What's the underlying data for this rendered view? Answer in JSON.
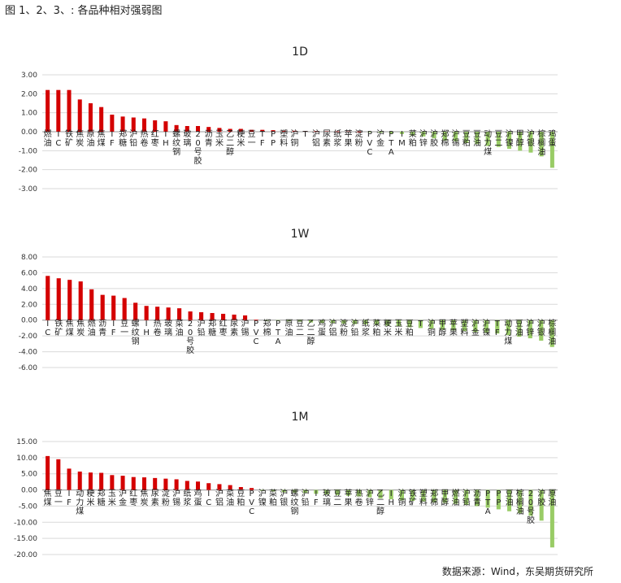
{
  "figure_title": "图 1、2、3、: 各品种相对强弱图",
  "source": "数据来源：Wind，东吴期货研究所",
  "colors": {
    "positive": "#d40000",
    "negative": "#99cc66",
    "grid": "#d9d9d9",
    "axis": "#999999"
  },
  "chart_data": [
    {
      "type": "bar",
      "title": "1D",
      "ylim": [
        -3,
        3
      ],
      "yticks": [
        "3.00",
        "2.00",
        "1.00",
        "0.00",
        "-1.00",
        "-2.00",
        "-3.00"
      ],
      "grid": true,
      "categories": [
        "燃油",
        "IC",
        "铁矿",
        "焦炭",
        "原油",
        "焦煤",
        "IF",
        "郑糖",
        "沪铅",
        "热卷",
        "红枣",
        "IH",
        "螺纹钢",
        "玻璃",
        "20号胶",
        "沥青",
        "玉米",
        "乙二醇",
        "粳米",
        "豆一",
        "TF",
        "PP",
        "塑料",
        "沪铜",
        "T",
        "沪铝",
        "尿素",
        "纸浆",
        "苹果",
        "淀粉",
        "PVC",
        "沪金",
        "PTA",
        "IM",
        "菜粕",
        "沪锌",
        "沪胶",
        "郑棉",
        "沪锡",
        "豆粕",
        "豆油",
        "动力煤",
        "豆二",
        "沪镍",
        "甲醇",
        "沪银",
        "棕榈油",
        "鸡蛋"
      ],
      "values": [
        2.2,
        2.2,
        2.2,
        1.7,
        1.5,
        1.3,
        0.9,
        0.8,
        0.75,
        0.7,
        0.6,
        0.55,
        0.35,
        0.3,
        0.3,
        0.25,
        0.2,
        0.15,
        0.15,
        0.1,
        0.1,
        0.08,
        0.06,
        0.05,
        0.04,
        0.03,
        0.02,
        0.02,
        0.01,
        0.01,
        -0.02,
        -0.05,
        -0.1,
        -0.12,
        -0.2,
        -0.25,
        -0.35,
        -0.45,
        -0.5,
        -0.6,
        -0.65,
        -0.75,
        -0.8,
        -0.9,
        -1.0,
        -1.1,
        -1.3,
        -1.9
      ]
    },
    {
      "type": "bar",
      "title": "1W",
      "ylim": [
        -6,
        8
      ],
      "yticks": [
        "8.00",
        "6.00",
        "4.00",
        "2.00",
        "0.00",
        "-2.00",
        "-4.00",
        "-6.00"
      ],
      "grid": true,
      "categories": [
        "IC",
        "铁矿",
        "焦煤",
        "焦炭",
        "燃油",
        "沥青",
        "IF",
        "豆一",
        "螺纹钢",
        "IH",
        "热卷",
        "玻璃",
        "菜油",
        "20号胶",
        "沪铅",
        "郑糖",
        "红枣",
        "尿素",
        "沪锡",
        "PVC",
        "郑棉",
        "PTA",
        "原油",
        "豆二",
        "乙二醇",
        "鸡蛋",
        "沪铝",
        "淀粉",
        "沪铅",
        "纸浆",
        "菜粕",
        "粳米",
        "玉米",
        "豆粕",
        "T",
        "沪铜",
        "甲醇",
        "苹果",
        "塑料",
        "沪金",
        "沪镍",
        "TF",
        "动力煤",
        "豆油",
        "沪锌",
        "沪银",
        "棕榈油"
      ],
      "values": [
        5.6,
        5.3,
        5.1,
        4.9,
        3.9,
        3.2,
        3.1,
        2.8,
        2.2,
        1.8,
        1.7,
        1.6,
        1.5,
        1.1,
        1.0,
        0.9,
        0.8,
        0.7,
        0.6,
        0.05,
        -0.05,
        -0.1,
        -0.15,
        -0.2,
        -0.3,
        -0.35,
        -0.4,
        -0.45,
        -0.5,
        -0.55,
        -0.6,
        -0.7,
        -0.8,
        -0.9,
        -1.0,
        -1.1,
        -1.2,
        -1.3,
        -1.4,
        -1.5,
        -1.6,
        -1.7,
        -1.9,
        -2.1,
        -2.3,
        -2.6,
        -3.4
      ]
    },
    {
      "type": "bar",
      "title": "1M",
      "ylim": [
        -20,
        15
      ],
      "yticks": [
        "15.00",
        "10.00",
        "5.00",
        "0.00",
        "-5.00",
        "-10.00",
        "-15.00",
        "-20.00"
      ],
      "grid": true,
      "categories": [
        "焦煤",
        "豆一",
        "IF",
        "动力煤",
        "粳米",
        "郑糖",
        "玉米",
        "沪金",
        "红枣",
        "焦炭",
        "尿素",
        "淀粉",
        "沪锡",
        "纸浆",
        "鸡蛋",
        "IC",
        "沪铝",
        "菜油",
        "豆粕",
        "PVC",
        "沪镍",
        "菜粕",
        "沪银",
        "螺纹钢",
        "沪铅",
        "IF",
        "玻璃",
        "豆二",
        "苹果",
        "热卷",
        "沪锌",
        "乙二醇",
        "IH",
        "沪铜",
        "铁矿",
        "塑料",
        "郑棉",
        "甲醇",
        "燃油",
        "沪铅",
        "沥青",
        "PTA",
        "PP",
        "豆油",
        "棕榈油",
        "20号胶",
        "沪胶",
        "原油"
      ],
      "values": [
        10.5,
        9.5,
        6.6,
        5.7,
        5.4,
        5.3,
        4.6,
        4.4,
        4.0,
        3.9,
        3.7,
        3.5,
        3.3,
        2.8,
        2.6,
        2.1,
        1.8,
        1.5,
        0.9,
        0.6,
        -0.3,
        -0.5,
        -0.7,
        -0.8,
        -1.0,
        -1.2,
        -1.4,
        -1.6,
        -1.8,
        -2.0,
        -2.3,
        -2.6,
        -2.9,
        -3.2,
        -3.4,
        -3.6,
        -3.8,
        -4.0,
        -4.3,
        -4.6,
        -5.0,
        -5.5,
        -6.0,
        -6.6,
        -7.2,
        -8.0,
        -9.5,
        -17.8
      ]
    }
  ]
}
